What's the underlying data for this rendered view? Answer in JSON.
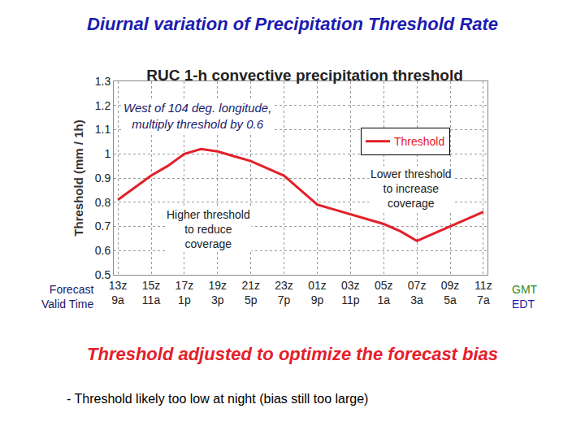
{
  "slide_title": "Diurnal variation of Precipitation Threshold Rate",
  "chart_data": {
    "type": "line",
    "title": "RUC 1-h convective precipitation threshold",
    "ylabel": "Threshold (mm / 1h)",
    "xlabel": "Forecast\nValid Time",
    "categories": [
      "13z",
      null,
      "15z",
      null,
      "17z",
      null,
      "19z",
      null,
      "21z",
      null,
      "23z",
      null,
      "01z",
      null,
      "03z",
      null,
      "05z",
      null,
      "07z",
      null,
      "09z",
      null,
      "11z"
    ],
    "secondary_categories": [
      "9a",
      null,
      "11a",
      null,
      "1p",
      null,
      "3p",
      null,
      "5p",
      null,
      "7p",
      null,
      "9p",
      null,
      "11p",
      null,
      "1a",
      null,
      "3a",
      null,
      "5a",
      null,
      "7a"
    ],
    "category_units": [
      "GMT",
      "EDT"
    ],
    "series": [
      {
        "name": "Threshold",
        "color": "#e3202a",
        "values": [
          0.81,
          0.86,
          0.91,
          0.95,
          1.0,
          1.02,
          1.01,
          0.99,
          0.97,
          0.94,
          0.91,
          0.85,
          0.79,
          0.77,
          0.75,
          0.73,
          0.71,
          0.68,
          0.64,
          0.67,
          0.7,
          0.73,
          0.76
        ]
      }
    ],
    "ylim": [
      0.5,
      1.3
    ],
    "yticks": [
      0.5,
      0.6,
      0.7,
      0.8,
      0.9,
      1,
      1.1,
      1.2,
      1.3
    ],
    "grid": true,
    "legend": "upper right",
    "annotations": [
      "West of 104 deg. longitude,\nmultiply threshold by 0.6",
      "Higher threshold\nto reduce\ncoverage",
      "Lower threshold\nto increase\ncoverage"
    ]
  },
  "footer": {
    "title": "Threshold adjusted to optimize the forecast bias",
    "note": "- Threshold likely too low at night (bias still too large)"
  }
}
